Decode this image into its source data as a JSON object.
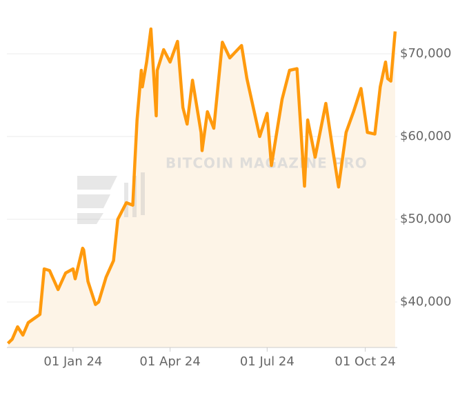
{
  "chart_data": {
    "type": "line",
    "watermark": "BITCOIN MAGAZINE PRO",
    "x": [
      "2023-11-01",
      "2023-11-05",
      "2023-11-10",
      "2023-11-15",
      "2023-11-20",
      "2023-12-01",
      "2023-12-05",
      "2023-12-10",
      "2023-12-18",
      "2023-12-25",
      "2024-01-01",
      "2024-01-03",
      "2024-01-10",
      "2024-01-11",
      "2024-01-15",
      "2024-01-22",
      "2024-01-25",
      "2024-02-01",
      "2024-02-08",
      "2024-02-12",
      "2024-02-20",
      "2024-02-26",
      "2024-02-28",
      "2024-03-01",
      "2024-03-05",
      "2024-03-06",
      "2024-03-10",
      "2024-03-14",
      "2024-03-19",
      "2024-03-20",
      "2024-03-26",
      "2024-04-01",
      "2024-04-08",
      "2024-04-13",
      "2024-04-17",
      "2024-04-22",
      "2024-04-30",
      "2024-05-01",
      "2024-05-06",
      "2024-05-12",
      "2024-05-20",
      "2024-05-27",
      "2024-06-07",
      "2024-06-12",
      "2024-06-24",
      "2024-07-01",
      "2024-07-05",
      "2024-07-15",
      "2024-07-22",
      "2024-07-29",
      "2024-08-05",
      "2024-08-08",
      "2024-08-15",
      "2024-08-25",
      "2024-09-01",
      "2024-09-06",
      "2024-09-13",
      "2024-09-20",
      "2024-09-27",
      "2024-10-03",
      "2024-10-10",
      "2024-10-15",
      "2024-10-20",
      "2024-10-22",
      "2024-10-25",
      "2024-10-29"
    ],
    "values": [
      35000,
      35500,
      37000,
      36000,
      37500,
      38500,
      44000,
      43800,
      41500,
      43500,
      44000,
      42800,
      46500,
      46300,
      42500,
      39700,
      40000,
      43000,
      45000,
      50000,
      52000,
      51700,
      57000,
      62000,
      68000,
      66000,
      69000,
      73000,
      62500,
      68000,
      70500,
      69000,
      71500,
      63500,
      61500,
      66800,
      60500,
      58300,
      63000,
      61000,
      71400,
      69500,
      71000,
      67000,
      60000,
      62800,
      56500,
      64500,
      68000,
      68200,
      54000,
      62000,
      57500,
      64000,
      58000,
      53900,
      60500,
      63000,
      65800,
      60500,
      60300,
      66000,
      69000,
      67000,
      66700,
      72700
    ],
    "color": "#ff9a0d",
    "area_color": "#fdf4e7",
    "xlim": [
      "2023-10-31",
      "2024-10-31"
    ],
    "xticks": [
      {
        "value": "2024-01-01",
        "label": "01 Jan 24"
      },
      {
        "value": "2024-04-01",
        "label": "01 Apr 24"
      },
      {
        "value": "2024-07-01",
        "label": "01 Jul 24"
      },
      {
        "value": "2024-10-01",
        "label": "01 Oct 24"
      }
    ],
    "ylim": [
      34500,
      74000
    ],
    "yticks": [
      {
        "value": 40000,
        "label": "$40,000"
      },
      {
        "value": 50000,
        "label": "$50,000"
      },
      {
        "value": 60000,
        "label": "$60,000"
      },
      {
        "value": 70000,
        "label": "$70,000"
      }
    ],
    "grid": true
  }
}
